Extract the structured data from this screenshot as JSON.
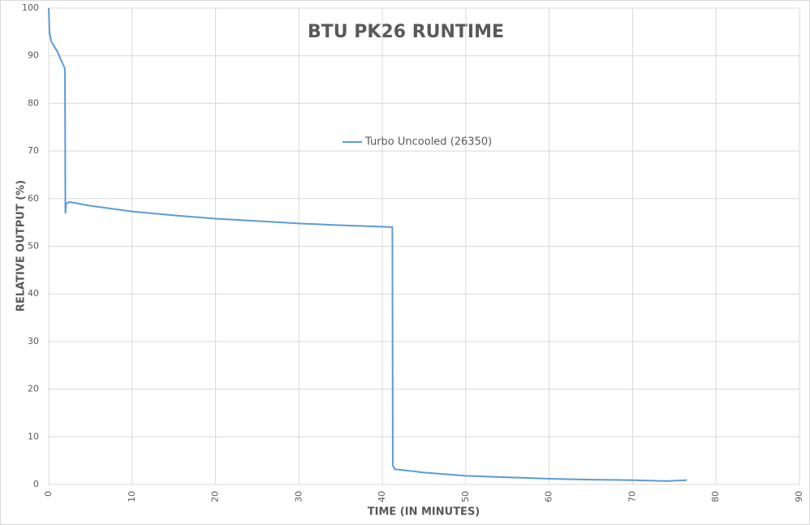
{
  "chart_data": {
    "type": "line",
    "title": "BTU PK26 RUNTIME",
    "x_label": "TIME (IN MINUTES)",
    "y_label": "RELATIVE OUTPUT (%)",
    "x": [
      0,
      0.1,
      0.3,
      1,
      1.5,
      1.9,
      1.95,
      2.0,
      2.1,
      2.5,
      5,
      10,
      15,
      20,
      25,
      30,
      35,
      40,
      41.2,
      41.25,
      41.5,
      45,
      50,
      55,
      60,
      65,
      70,
      74,
      76.5
    ],
    "series": [
      {
        "name": "Turbo Uncooled (26350)",
        "color": "#5b9bd5",
        "values": [
          100,
          95,
          93,
          91,
          89,
          87.5,
          87,
          57,
          59,
          59.3,
          58.5,
          57.3,
          56.5,
          55.8,
          55.3,
          54.8,
          54.4,
          54.1,
          54,
          4,
          3.2,
          2.5,
          1.8,
          1.5,
          1.2,
          1.0,
          0.9,
          0.7,
          0.9
        ]
      }
    ],
    "xlim": [
      0,
      90
    ],
    "xticks": [
      0,
      10,
      20,
      30,
      40,
      50,
      60,
      70,
      80,
      90
    ],
    "ylim": [
      0,
      100
    ],
    "yticks": [
      0,
      10,
      20,
      30,
      40,
      50,
      60,
      70,
      80,
      90,
      100
    ],
    "grid": true,
    "legend": "center"
  }
}
